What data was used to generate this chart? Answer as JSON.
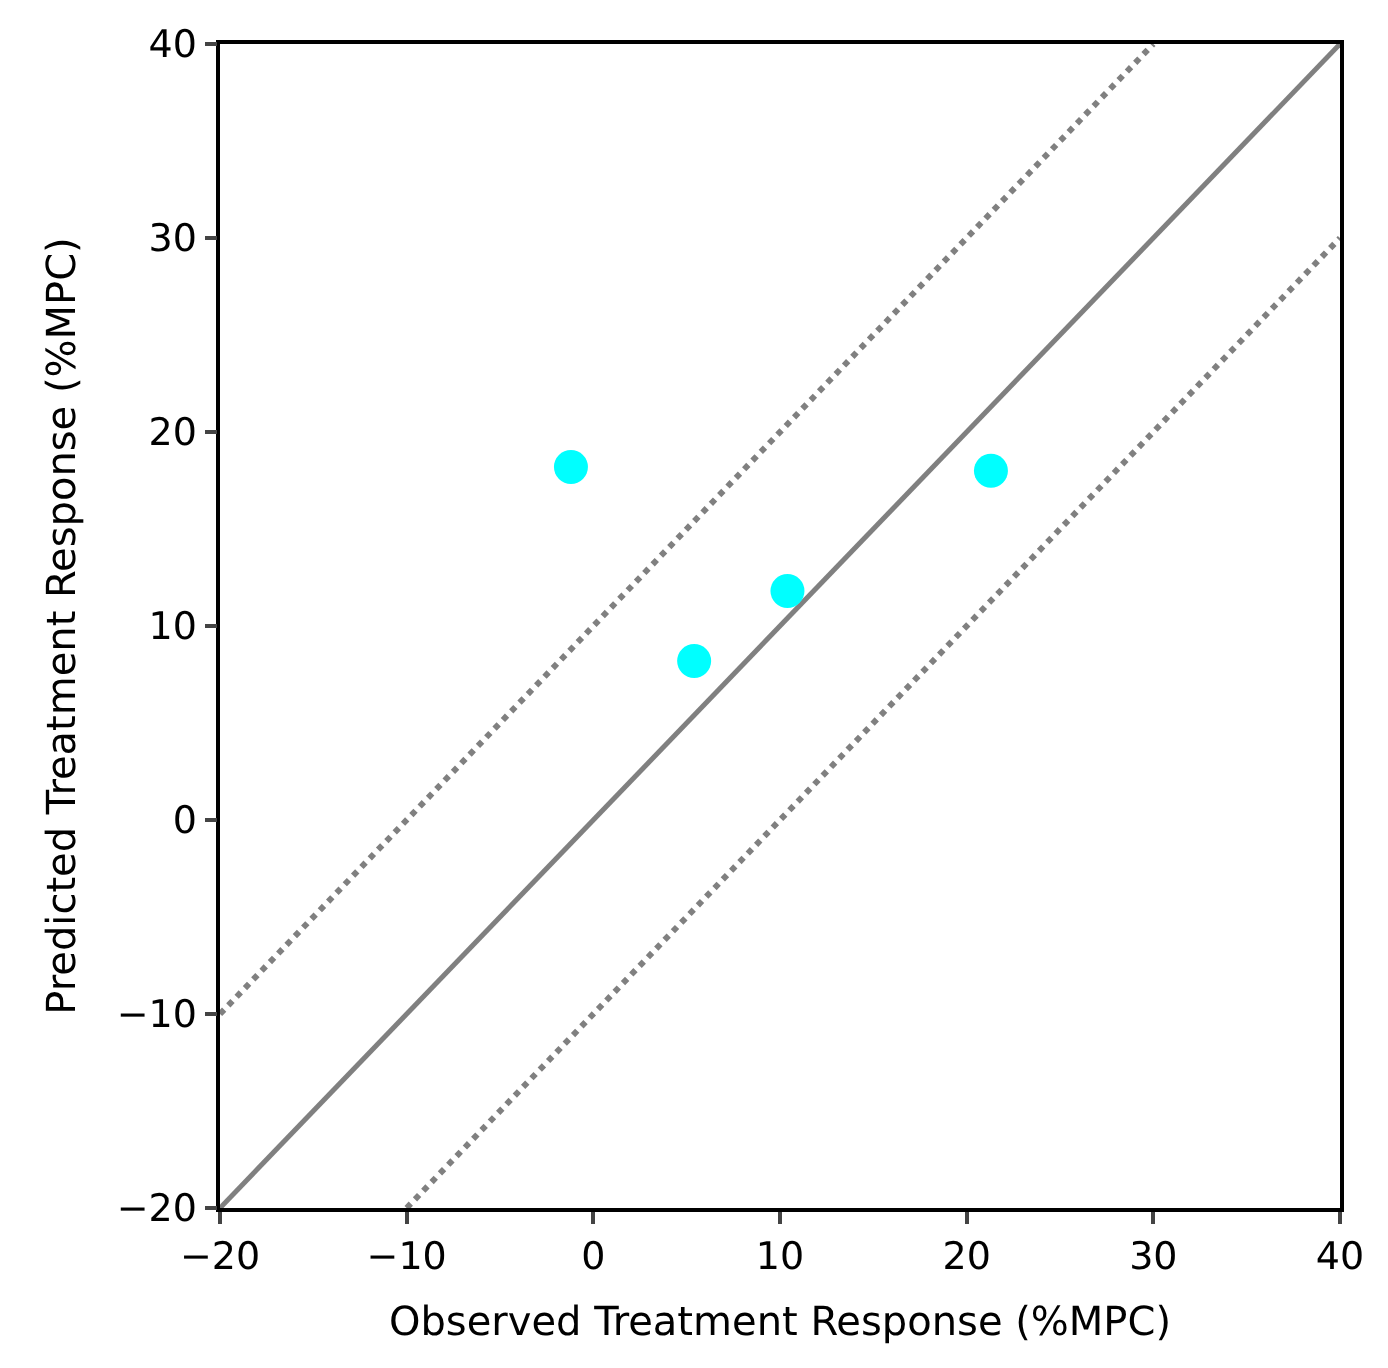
{
  "chart_data": {
    "type": "scatter",
    "xlabel": "Observed Treatment Response (%MPC)",
    "ylabel": "Predicted Treatment Response (%MPC)",
    "xlim": [
      -20,
      40
    ],
    "ylim": [
      -20,
      40
    ],
    "xticks": [
      -20,
      -10,
      0,
      10,
      20,
      30,
      40
    ],
    "yticks": [
      -20,
      -10,
      0,
      10,
      20,
      30,
      40
    ],
    "series": [
      {
        "type": "line",
        "marker": "none",
        "color": "#808080",
        "line_style": "solid",
        "x": [
          -20,
          40
        ],
        "values": [
          -20,
          40
        ]
      },
      {
        "type": "line",
        "marker": "none",
        "color": "#808080",
        "line_style": "dotted",
        "x": [
          -20,
          30
        ],
        "values": [
          -10,
          40
        ]
      },
      {
        "type": "line",
        "marker": "none",
        "color": "#808080",
        "line_style": "dotted",
        "x": [
          -10,
          40
        ],
        "values": [
          -20,
          30
        ]
      },
      {
        "marker": "circle",
        "color": "#00ffff",
        "x": [
          -1.2,
          5.4,
          10.4,
          21.3
        ],
        "values": [
          18.2,
          8.2,
          11.8,
          18.0
        ]
      }
    ]
  }
}
